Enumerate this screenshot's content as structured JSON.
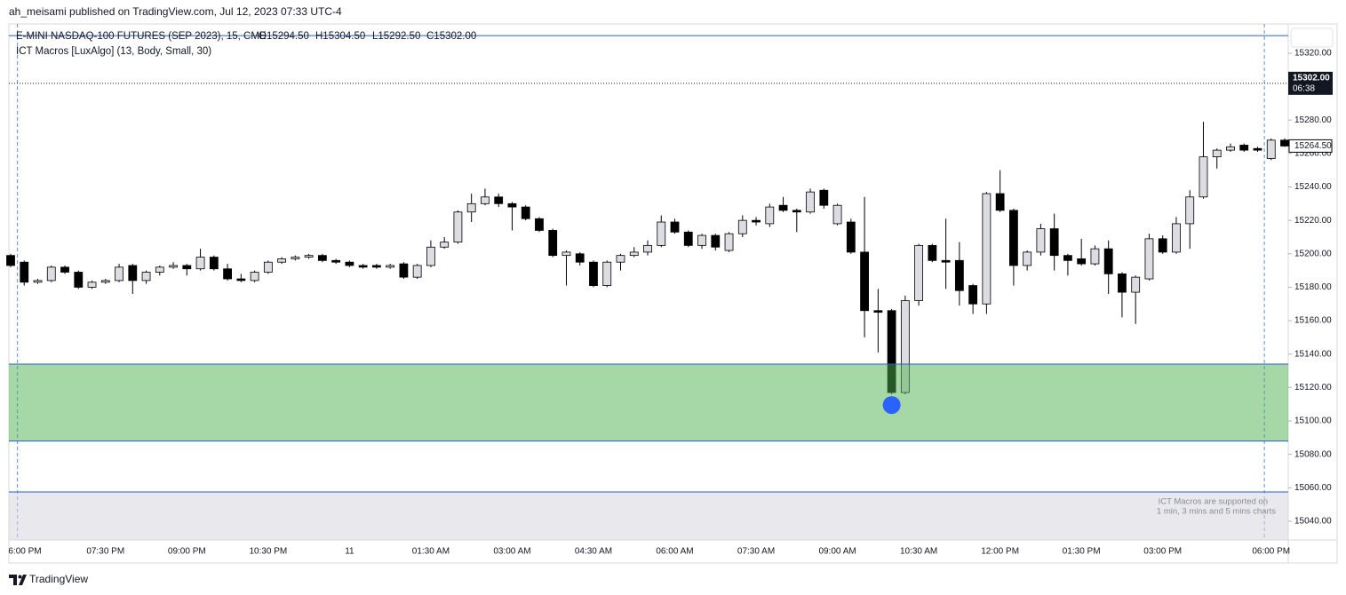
{
  "header": {
    "text": "ah_meisami published on TradingView.com, Jul 12, 2023 07:33 UTC-4"
  },
  "footer": {
    "brand": "TradingView"
  },
  "chart_data": {
    "type": "candlestick",
    "symbol": "E-MINI NASDAQ-100 FUTURES (SEP 2023), 15, CME",
    "ohlc_legend": [
      "O15294.50",
      "H15304.50",
      "L15292.50",
      "C15302.00"
    ],
    "indicator": "ICT Macros [LuxAlgo] (13, Body, Small, 30)",
    "note": [
      "ICT Macros are supported on",
      "1 min, 3 mins and 5 mins charts"
    ],
    "categories": [
      null,
      "6:00 PM",
      null,
      null,
      null,
      null,
      null,
      "07:30 PM",
      null,
      null,
      null,
      null,
      null,
      "09:00 PM",
      null,
      null,
      null,
      null,
      null,
      "10:30 PM",
      null,
      null,
      null,
      null,
      null,
      "11",
      null,
      null,
      null,
      null,
      null,
      "01:30 AM",
      null,
      null,
      null,
      null,
      null,
      "03:00 AM",
      null,
      null,
      null,
      null,
      null,
      "04:30 AM",
      null,
      null,
      null,
      null,
      null,
      "06:00 AM",
      null,
      null,
      null,
      null,
      null,
      "07:30 AM",
      null,
      null,
      null,
      null,
      null,
      "09:00 AM",
      null,
      null,
      null,
      null,
      null,
      "10:30 AM",
      null,
      null,
      null,
      null,
      null,
      "12:00 PM",
      null,
      null,
      null,
      null,
      null,
      "01:30 PM",
      null,
      null,
      null,
      null,
      null,
      "03:00 PM",
      null,
      null,
      null,
      null,
      null,
      null,
      null,
      "06:00 PM",
      null
    ],
    "open": [
      15199,
      15195,
      15183,
      15184,
      15192,
      15189,
      15180,
      15183,
      15184,
      15193,
      15184,
      15189,
      15192,
      15193,
      15191,
      15198,
      15191,
      15185,
      15184,
      15189,
      15195,
      15197,
      15198,
      15199,
      15196,
      15195,
      15193,
      15193,
      15192,
      15194,
      15186,
      15193,
      15204,
      15207,
      15225,
      15230,
      15234,
      15230,
      15228,
      15221,
      15214,
      15199,
      15200,
      15195,
      15181,
      15195,
      15199,
      15201,
      15205,
      15219,
      15213,
      15205,
      15211,
      15202,
      15212,
      15220,
      15218,
      15229,
      15226,
      15225,
      15238,
      15218,
      15219,
      15201,
      15166,
      15166,
      15117,
      15172,
      15205,
      15196,
      15196,
      15181,
      15170,
      15236,
      15226,
      15193,
      15201,
      15215,
      15199,
      15197,
      15194,
      15203,
      15188,
      15177,
      15185,
      15209,
      15201,
      15218,
      15234,
      15258,
      15262,
      15265,
      15263,
      15257,
      15268
    ],
    "high": [
      15200,
      15196,
      15185,
      15193,
      15193,
      15190,
      15184,
      15185,
      15194,
      15194,
      15190,
      15193,
      15195,
      15194,
      15203,
      15199,
      15194,
      15188,
      15190,
      15196,
      15198,
      15199,
      15200,
      15200,
      15197,
      15196,
      15194,
      15194,
      15194,
      15195,
      15194,
      15208,
      15210,
      15226,
      15236,
      15239,
      15236,
      15231,
      15229,
      15222,
      15215,
      15202,
      15201,
      15196,
      15196,
      15200,
      15204,
      15208,
      15223,
      15221,
      15214,
      15212,
      15212,
      15213,
      15223,
      15222,
      15230,
      15234,
      15227,
      15239,
      15239,
      15230,
      15221,
      15234,
      15179,
      15167,
      15175,
      15206,
      15206,
      15221,
      15207,
      15182,
      15237,
      15250,
      15227,
      15202,
      15218,
      15224,
      15200,
      15209,
      15205,
      15208,
      15189,
      15187,
      15212,
      15211,
      15222,
      15238,
      15279,
      15263,
      15266,
      15266,
      15264,
      15269,
      15269
    ],
    "low": [
      15192,
      15181,
      15182,
      15183,
      15188,
      15179,
      15179,
      15182,
      15183,
      15176,
      15182,
      15187,
      15191,
      15187,
      15190,
      15190,
      15184,
      15183,
      15183,
      15188,
      15194,
      15196,
      15197,
      15195,
      15194,
      15192,
      15191,
      15191,
      15191,
      15185,
      15185,
      15192,
      15203,
      15206,
      15219,
      15229,
      15228,
      15214,
      15220,
      15213,
      15198,
      15181,
      15193,
      15180,
      15180,
      15190,
      15198,
      15199,
      15204,
      15212,
      15204,
      15203,
      15202,
      15201,
      15210,
      15217,
      15216,
      15225,
      15213,
      15224,
      15227,
      15217,
      15200,
      15150,
      15141,
      15116,
      15116,
      15169,
      15195,
      15179,
      15169,
      15164,
      15164,
      15225,
      15181,
      15190,
      15199,
      15190,
      15187,
      15193,
      15193,
      15176,
      15162,
      15158,
      15184,
      15200,
      15200,
      15203,
      15233,
      15251,
      15261,
      15261,
      15261,
      15256,
      15264
    ],
    "close": [
      15193,
      15183,
      15184,
      15192,
      15189,
      15180,
      15183,
      15184,
      15192,
      15184,
      15189,
      15192,
      15193,
      15191,
      15198,
      15191,
      15185,
      15184,
      15189,
      15195,
      15197,
      15198,
      15199,
      15196,
      15195,
      15193,
      15192,
      15192,
      15193,
      15186,
      15193,
      15204,
      15207,
      15225,
      15230,
      15234,
      15230,
      15228,
      15221,
      15214,
      15199,
      15201,
      15195,
      15181,
      15195,
      15199,
      15201,
      15205,
      15219,
      15213,
      15205,
      15211,
      15204,
      15212,
      15220,
      15219,
      15228,
      15226,
      15225,
      15237,
      15229,
      15229,
      15201,
      15166,
      15165,
      15117,
      15172,
      15205,
      15196,
      15195,
      15178,
      15170,
      15236,
      15226,
      15193,
      15201,
      15215,
      15199,
      15196,
      15194,
      15203,
      15188,
      15177,
      15186,
      15209,
      15201,
      15218,
      15234,
      15258,
      15262,
      15264,
      15262,
      15262,
      15268,
      15264.5
    ],
    "up_color": "#dcdde2",
    "down_color": "#000000",
    "signals": {
      "color": "#2962ff",
      "values": [
        null,
        null,
        null,
        null,
        null,
        null,
        null,
        null,
        null,
        null,
        null,
        null,
        null,
        null,
        null,
        null,
        null,
        null,
        null,
        null,
        null,
        null,
        null,
        null,
        null,
        null,
        null,
        null,
        null,
        null,
        null,
        null,
        null,
        null,
        null,
        null,
        null,
        null,
        null,
        null,
        null,
        null,
        null,
        null,
        null,
        null,
        null,
        null,
        null,
        null,
        null,
        null,
        null,
        null,
        null,
        null,
        null,
        null,
        null,
        null,
        null,
        null,
        null,
        null,
        null,
        15109.5,
        null,
        null,
        null,
        null,
        null,
        null,
        null,
        null,
        null,
        null,
        null,
        null,
        null,
        null,
        null,
        null,
        null,
        null,
        null,
        null,
        null,
        null,
        null,
        null,
        null,
        null,
        null,
        null,
        null
      ]
    },
    "levels": [
      {
        "value": 15330.5,
        "color": "#2a5bd7"
      },
      {
        "value": 15134,
        "color": "#2a5bd7"
      },
      {
        "value": 15088,
        "color": "#2a5bd7"
      },
      {
        "value": 15057.5,
        "color": "#2a5bd7"
      }
    ],
    "zone": {
      "low": 15088,
      "high": 15134,
      "color": "#4caf50",
      "opacity": 0.5
    },
    "unsupported_zone": {
      "high": 15057.5,
      "color": "#d5d6de",
      "opacity": 0.55
    },
    "price_line": {
      "value": 15302,
      "label": "15302.00",
      "countdown": "06:38"
    },
    "last_price": {
      "value": 15264.5,
      "label": "15264.50"
    },
    "ylim": [
      15028.8,
      15337.5
    ],
    "yticks": [
      {
        "value": 15040,
        "label": "15040.00"
      },
      {
        "value": 15060,
        "label": "15060.00"
      },
      {
        "value": 15080,
        "label": "15080.00"
      },
      {
        "value": 15100,
        "label": "15100.00"
      },
      {
        "value": 15120,
        "label": "15120.00"
      },
      {
        "value": 15140,
        "label": "15140.00"
      },
      {
        "value": 15160,
        "label": "15160.00"
      },
      {
        "value": 15180,
        "label": "15180.00"
      },
      {
        "value": 15200,
        "label": "15200.00"
      },
      {
        "value": 15220,
        "label": "15220.00"
      },
      {
        "value": 15240,
        "label": "15240.00"
      },
      {
        "value": 15260,
        "label": "15260.00"
      },
      {
        "value": 15280,
        "label": "15280.00"
      },
      {
        "value": 15320,
        "label": "15320.00"
      }
    ],
    "grid": false
  }
}
